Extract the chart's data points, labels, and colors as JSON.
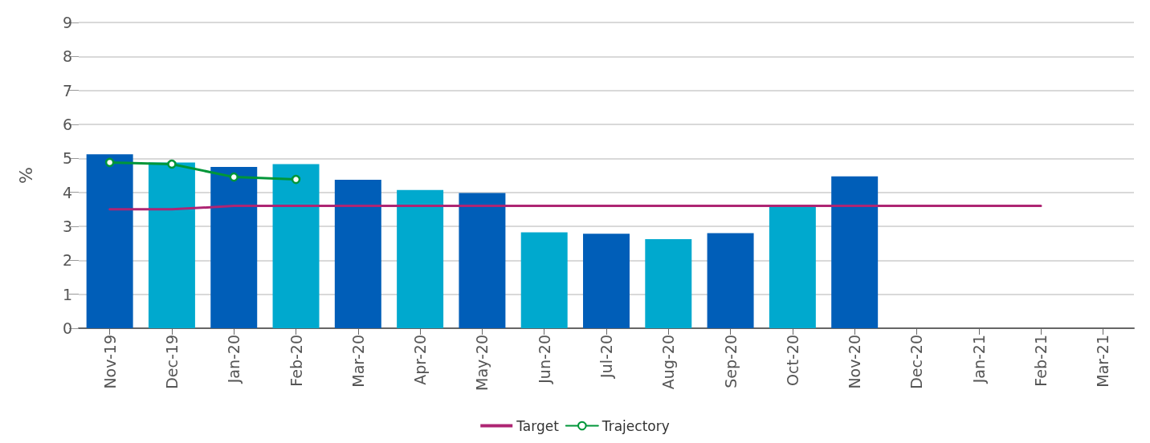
{
  "chart_data": {
    "type": "bar",
    "ylabel": "%",
    "categories": [
      "Nov-19",
      "Dec-19",
      "Jan-20",
      "Feb-20",
      "Mar-20",
      "Apr-20",
      "May-20",
      "Jun-20",
      "Jul-20",
      "Aug-20",
      "Sep-20",
      "Oct-20",
      "Nov-20",
      "Dec-20",
      "Jan-21",
      "Feb-21",
      "Mar-21"
    ],
    "series": [
      {
        "colors": [
          "#005eb8",
          "#00a9ce",
          "#005eb8",
          "#00a9ce",
          "#005eb8",
          "#00a9ce",
          "#005eb8",
          "#00a9ce",
          "#005eb8",
          "#00a9ce",
          "#005eb8",
          "#00a9ce",
          "#005eb8",
          null,
          null,
          null,
          null
        ],
        "values": [
          5.12,
          4.88,
          4.75,
          4.83,
          4.37,
          4.07,
          3.98,
          2.82,
          2.78,
          2.62,
          2.8,
          3.6,
          4.47,
          null,
          null,
          null,
          null
        ]
      },
      {
        "type": "line",
        "name": "Target",
        "color": "#ae2573",
        "marker": "none",
        "values": [
          3.5,
          3.5,
          3.6,
          3.6,
          3.6,
          3.6,
          3.6,
          3.6,
          3.6,
          3.6,
          3.6,
          3.6,
          3.6,
          3.6,
          3.6,
          3.6,
          null
        ]
      },
      {
        "type": "line",
        "name": "Trajectory",
        "color": "#009639",
        "marker": "circle",
        "values": [
          4.88,
          4.83,
          4.45,
          4.38,
          null,
          null,
          null,
          null,
          null,
          null,
          null,
          null,
          null,
          null,
          null,
          null,
          null
        ]
      }
    ],
    "ylim": [
      0,
      9
    ],
    "yticks": [
      0,
      1,
      2,
      3,
      4,
      5,
      6,
      7,
      8,
      9
    ],
    "grid": "y",
    "legend": "bottom"
  }
}
